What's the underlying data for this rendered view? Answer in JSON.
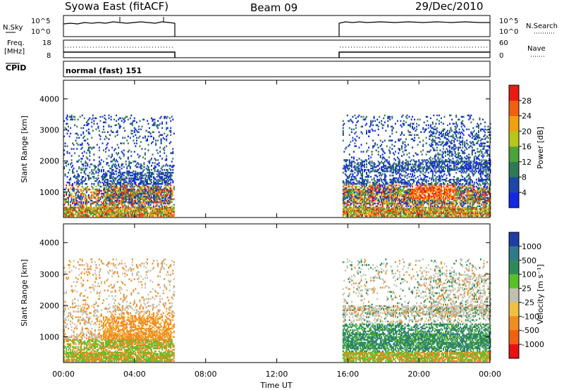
{
  "header": {
    "title": "Syowa East (fitACF)",
    "beam": "Beam 09",
    "date": "29/Dec/2010"
  },
  "strips": {
    "nsky_label": "N.Sky",
    "nsearch_label": "N.Search",
    "freq_label_1": "Freq.",
    "freq_label_2": "[MHz]",
    "nave_label": "Nave",
    "cpid_label": "CPID",
    "cpid_text": "normal (fast) 151",
    "noise_left_ticks": [
      "10^5",
      "10^0"
    ],
    "noise_right_ticks": [
      "10^5",
      "10^0"
    ],
    "freq_left_ticks": [
      "18",
      "8"
    ],
    "freq_right_ticks": [
      "60",
      "0"
    ]
  },
  "axes": {
    "xlabel": "Time UT",
    "ylabel": "Slant Range [km]",
    "power_cbar_label": "Power [dB]",
    "velocity_cbar_label": "Velocity [m s⁻¹]"
  },
  "chart_data": [
    {
      "type": "heatmap",
      "name": "power",
      "x_ticks": [
        "00:00",
        "04:00",
        "08:00",
        "12:00",
        "16:00",
        "20:00",
        "00:00"
      ],
      "x_range_hours": [
        0,
        24
      ],
      "y_ticks": [
        1000,
        2000,
        3000,
        4000
      ],
      "y_range_km": [
        180,
        4600
      ],
      "data_intervals_hours": [
        [
          0,
          6.2
        ],
        [
          15.7,
          24
        ]
      ],
      "colorbar_ticks": [
        "4",
        "8",
        "12",
        "16",
        "20",
        "24",
        "28"
      ],
      "colorbar_range": [
        0,
        30
      ],
      "colors": [
        "#1428e6",
        "#1e46a8",
        "#2f7a55",
        "#4aa43a",
        "#b6c61a",
        "#f0a010",
        "#f06010",
        "#e81c10"
      ]
    },
    {
      "type": "heatmap",
      "name": "velocity",
      "x_ticks": [
        "00:00",
        "04:00",
        "08:00",
        "12:00",
        "16:00",
        "20:00",
        "00:00"
      ],
      "x_range_hours": [
        0,
        24
      ],
      "y_ticks": [
        1000,
        2000,
        3000,
        4000
      ],
      "y_range_km": [
        180,
        4600
      ],
      "data_intervals_hours": [
        [
          0,
          6.2
        ],
        [
          15.7,
          24
        ]
      ],
      "colorbar_ticks": [
        "1000",
        "500",
        "100",
        "25",
        "-25",
        "-100",
        "-500",
        "-1000"
      ],
      "colors": [
        "#1e3ea6",
        "#2f7a8a",
        "#2e8b57",
        "#5ac02a",
        "#c0c0b0",
        "#f0c040",
        "#f08c20",
        "#f06010",
        "#e81010"
      ]
    }
  ]
}
